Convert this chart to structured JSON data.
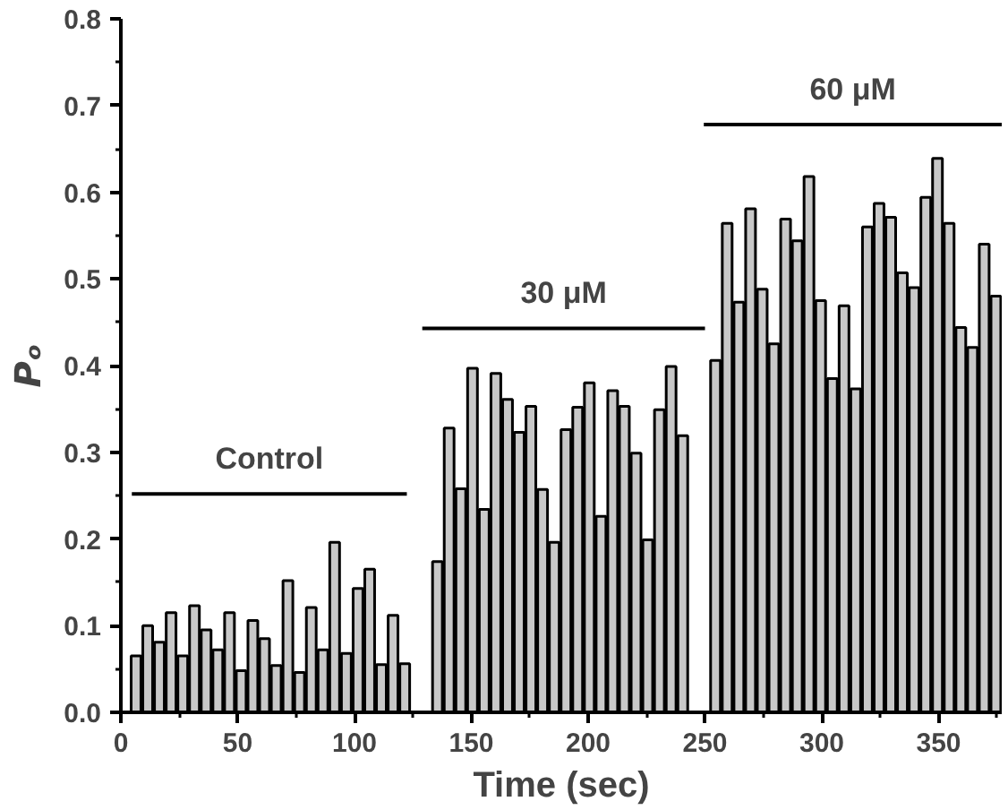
{
  "chart_data": {
    "type": "bar",
    "xlabel": "Time (sec)",
    "ylabel": "Pₒ",
    "xlim": [
      0,
      377
    ],
    "ylim": [
      0,
      0.8
    ],
    "xticks": [
      0,
      {
        "value": 25,
        "label": null
      },
      50,
      {
        "value": 75,
        "label": null
      },
      100,
      {
        "value": 125,
        "label": null
      },
      150,
      {
        "value": 175,
        "label": null
      },
      200,
      {
        "value": 225,
        "label": null
      },
      250,
      {
        "value": 275,
        "label": null
      },
      300,
      {
        "value": 325,
        "label": null
      },
      350,
      {
        "value": 375,
        "label": null
      }
    ],
    "yticks": [
      {
        "value": 0,
        "label": "0.0"
      },
      {
        "value": 0.05,
        "label": null
      },
      0.1,
      {
        "value": 0.15,
        "label": null
      },
      0.2,
      {
        "value": 0.25,
        "label": null
      },
      0.3,
      {
        "value": 0.35,
        "label": null
      },
      0.4,
      {
        "value": 0.45,
        "label": null
      },
      0.5,
      {
        "value": 0.55,
        "label": null
      },
      0.6,
      {
        "value": 0.65,
        "label": null
      },
      0.7,
      {
        "value": 0.75,
        "label": null
      },
      0.8
    ],
    "grid": false,
    "series": [
      {
        "color": "#c8c8c8",
        "x": [
          6.5,
          11.5,
          16.5,
          21.5,
          26.5,
          31.5,
          36.5,
          41.5,
          46.5,
          51.5,
          56.5,
          61.5,
          66.5,
          71.5,
          76.5,
          81.5,
          86.5,
          91.5,
          96.5,
          101.5,
          106.5,
          111.5,
          116.5,
          121.5,
          135.5,
          140.5,
          145.5,
          150.5,
          155.5,
          160.5,
          165.5,
          170.5,
          175.5,
          180.5,
          185.5,
          190.5,
          195.5,
          200.5,
          205.5,
          210.5,
          215.5,
          220.5,
          225.5,
          230.5,
          235.5,
          240.5,
          254.5,
          259.5,
          264.5,
          269.5,
          274.5,
          279.5,
          284.5,
          289.5,
          294.5,
          299.5,
          304.5,
          309.5,
          314.5,
          319.5,
          324.5,
          329.5,
          334.5,
          339.5,
          344.5,
          349.5,
          354.5,
          359.5,
          364.5,
          369.5,
          374.5
        ],
        "values": [
          0.065,
          0.1,
          0.081,
          0.115,
          0.065,
          0.123,
          0.095,
          0.072,
          0.115,
          0.048,
          0.106,
          0.085,
          0.054,
          0.152,
          0.046,
          0.121,
          0.072,
          0.196,
          0.068,
          0.143,
          0.165,
          0.055,
          0.112,
          0.056,
          0.174,
          0.328,
          0.258,
          0.397,
          0.234,
          0.391,
          0.361,
          0.323,
          0.353,
          0.257,
          0.196,
          0.326,
          0.352,
          0.38,
          0.226,
          0.371,
          0.353,
          0.299,
          0.199,
          0.349,
          0.399,
          0.319,
          0.406,
          0.564,
          0.473,
          0.581,
          0.488,
          0.425,
          0.569,
          0.544,
          0.618,
          0.475,
          0.385,
          0.469,
          0.373,
          0.56,
          0.587,
          0.571,
          0.507,
          0.49,
          0.594,
          0.639,
          0.564,
          0.444,
          0.421,
          0.54,
          0.48
        ]
      },
      {
        "type": "line",
        "color": "#000000",
        "x": [
          4.7,
          122.4
        ],
        "values": [
          0.252,
          0.252
        ]
      },
      {
        "type": "line",
        "color": "#000000",
        "x": [
          129,
          250
        ],
        "values": [
          0.443,
          0.443
        ]
      },
      {
        "type": "line",
        "color": "#000000",
        "x": [
          249.5,
          377
        ],
        "values": [
          0.678,
          0.678
        ]
      }
    ],
    "annotations": [
      "Control",
      "30 μM",
      "60 μM"
    ]
  }
}
